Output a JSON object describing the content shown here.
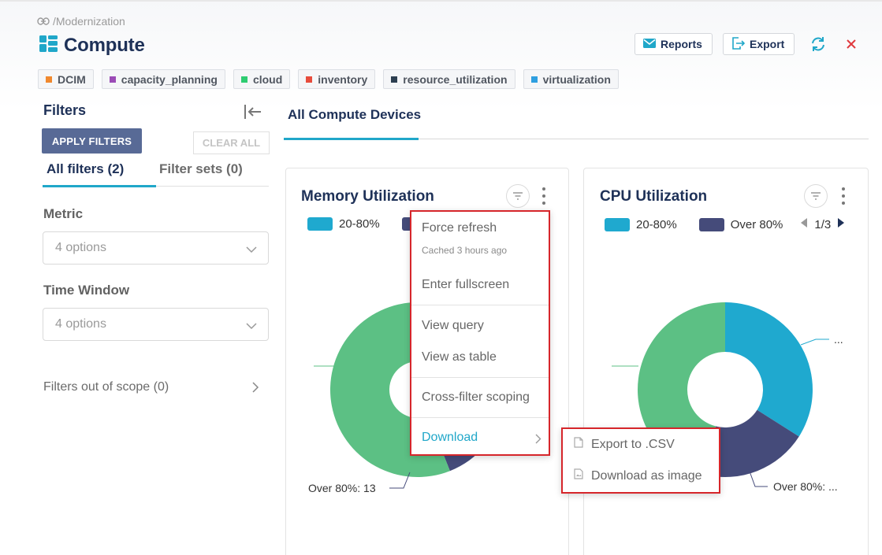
{
  "header": {
    "breadcrumb": "/Modernization",
    "title": "Compute",
    "reports_label": "Reports",
    "export_label": "Export",
    "tags": [
      {
        "label": "DCIM",
        "color": "#f0882e"
      },
      {
        "label": "capacity_planning",
        "color": "#9b4bb6"
      },
      {
        "label": "cloud",
        "color": "#2ecc71"
      },
      {
        "label": "inventory",
        "color": "#e74c3c"
      },
      {
        "label": "resource_utilization",
        "color": "#2c3e50"
      },
      {
        "label": "virtualization",
        "color": "#2e9fe0"
      }
    ]
  },
  "filters": {
    "title": "Filters",
    "apply_label": "APPLY FILTERS",
    "clear_label": "CLEAR ALL",
    "tab_all": "All filters (2)",
    "tab_sets": "Filter sets (0)",
    "metric_label": "Metric",
    "metric_placeholder": "4 options",
    "time_label": "Time Window",
    "time_placeholder": "4 options",
    "out_of_scope": "Filters out of scope (0)"
  },
  "main": {
    "tab": "All Compute Devices"
  },
  "charts": {
    "memory": {
      "title": "Memory Utilization",
      "legend": [
        {
          "label": "20-80%",
          "color": "#1fa9cf"
        }
      ],
      "label_over": "Over 80%: 13"
    },
    "cpu": {
      "title": "CPU Utilization",
      "legend": [
        {
          "label": "20-80%",
          "color": "#1fa9cf"
        },
        {
          "label": "Over 80%",
          "color": "#454b7a"
        }
      ],
      "pagination": "1/3",
      "label_top": "...",
      "label_over": "Over 80%: ..."
    }
  },
  "chart_data": [
    {
      "type": "pie",
      "title": "Memory Utilization",
      "series": [
        {
          "name": "20-80%",
          "color": "#1fa9cf"
        },
        {
          "name": "Over 80%",
          "value": 13,
          "color": "#454b7a"
        },
        {
          "color": "#5cc084"
        }
      ],
      "legend": "top-left"
    },
    {
      "type": "pie",
      "title": "CPU Utilization",
      "slices": [
        {
          "name": "20-80%",
          "fraction": 0.34,
          "color": "#1fa9cf"
        },
        {
          "name": "Over 80%",
          "fraction": 0.2,
          "color": "#454b7a"
        },
        {
          "fraction": 0.46,
          "color": "#5cc084"
        }
      ],
      "legend": "top-left"
    }
  ],
  "context_menu": {
    "force_refresh": "Force refresh",
    "cached": "Cached 3 hours ago",
    "fullscreen": "Enter fullscreen",
    "view_query": "View query",
    "view_table": "View as table",
    "cross_filter": "Cross-filter scoping",
    "download": "Download"
  },
  "download_menu": {
    "csv": "Export to .CSV",
    "image": "Download as image"
  },
  "colors": {
    "accent": "#20a7c9",
    "navy": "#1e3158",
    "highlight": "#d6262b"
  }
}
